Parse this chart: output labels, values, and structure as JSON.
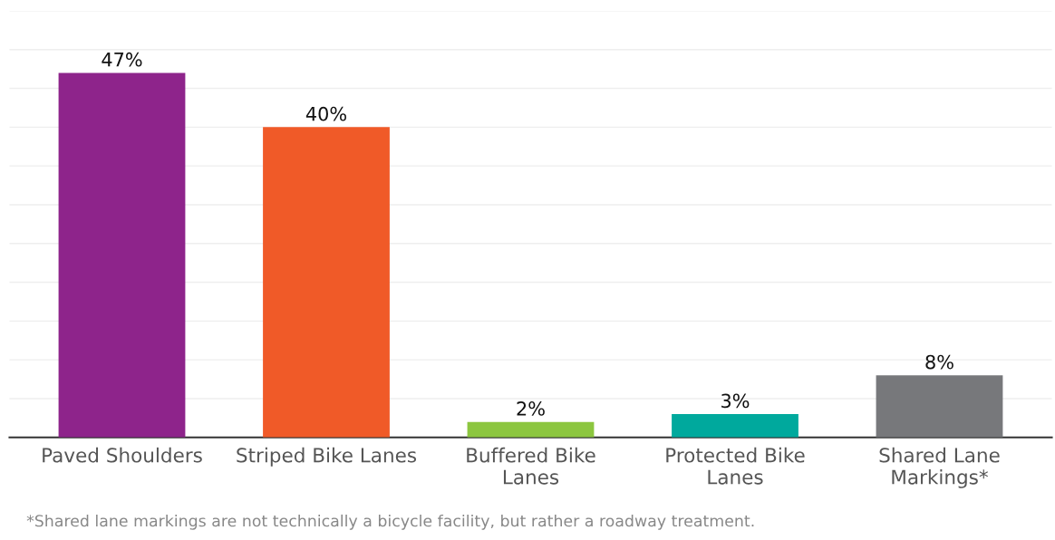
{
  "chart_data": {
    "type": "bar",
    "categories": [
      "Paved Shoulders",
      "Striped Bike Lanes",
      "Buffered Bike\nLanes",
      "Protected Bike\nLanes",
      "Shared Lane\nMarkings*"
    ],
    "values": [
      47,
      40,
      2,
      3,
      8
    ],
    "colors": [
      "#8e248b",
      "#f05a28",
      "#8cc63f",
      "#00a99d",
      "#77787b"
    ],
    "value_labels": [
      "47%",
      "40%",
      "2%",
      "3%",
      "8%"
    ],
    "ylim": [
      0,
      55
    ],
    "yticks": [
      {
        "value": 0,
        "label": null
      },
      {
        "value": 5,
        "label": null
      },
      {
        "value": 10,
        "label": null
      },
      {
        "value": 15,
        "label": null
      },
      {
        "value": 20,
        "label": null
      },
      {
        "value": 25,
        "label": null
      },
      {
        "value": 30,
        "label": null
      },
      {
        "value": 35,
        "label": null
      },
      {
        "value": 40,
        "label": null
      },
      {
        "value": 45,
        "label": null
      },
      {
        "value": 50,
        "label": null
      },
      {
        "value": 55,
        "label": null
      }
    ],
    "grid": "y",
    "tick_labels": "x",
    "annotations": [
      "*Shared lane markings are not technically a bicycle facility, but rather a roadway treatment."
    ]
  }
}
